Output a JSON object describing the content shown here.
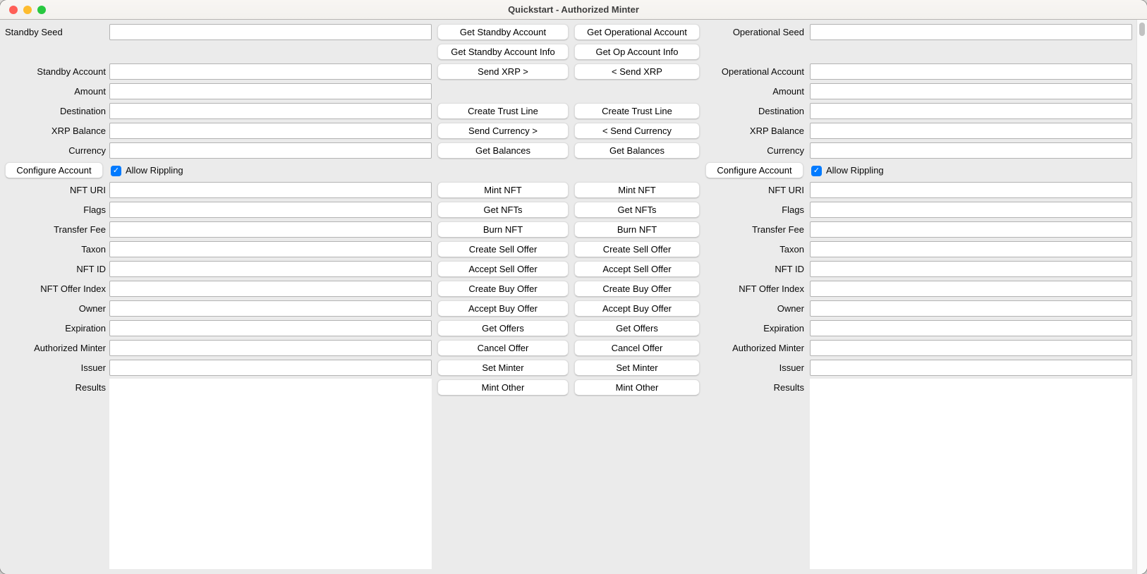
{
  "window": {
    "title": "Quickstart - Authorized Minter"
  },
  "icons": {
    "checkmark": "✓"
  },
  "colors": {
    "accent_blue": "#007aff",
    "traffic_close": "#ff5f57",
    "traffic_minimize": "#febc2e",
    "traffic_zoom": "#28c840",
    "page_background": "#ebebeb"
  },
  "rows": [
    {
      "left_label": "Standby Seed",
      "left_align": "left",
      "left_input": true,
      "btn1": "Get Standby Account",
      "btn2": "Get Operational Account",
      "right_label": "Operational Seed",
      "right_input": true
    },
    {
      "btn1": "Get Standby Account Info",
      "btn2": "Get Op Account Info"
    },
    {
      "left_label": "Standby Account",
      "left_input": true,
      "btn1": "Send XRP >",
      "btn2": "< Send XRP",
      "right_label": "Operational Account",
      "right_input": true
    },
    {
      "left_label": "Amount",
      "left_input": true,
      "right_label": "Amount",
      "right_input": true
    },
    {
      "left_label": "Destination",
      "left_input": true,
      "btn1": "Create Trust Line",
      "btn2": "Create Trust Line",
      "right_label": "Destination",
      "right_input": true
    },
    {
      "left_label": "XRP Balance",
      "left_input": true,
      "btn1": "Send Currency >",
      "btn2": "< Send Currency",
      "right_label": "XRP Balance",
      "right_input": true
    },
    {
      "left_label": "Currency",
      "left_input": true,
      "btn1": "Get Balances",
      "btn2": "Get Balances",
      "right_label": "Currency",
      "right_input": true
    },
    {
      "type": "configure",
      "button": "Configure Account",
      "checkbox_label": "Allow Rippling",
      "checked": true
    },
    {
      "left_label": "NFT URI",
      "left_input": true,
      "btn1": "Mint NFT",
      "btn2": "Mint NFT",
      "right_label": "NFT URI",
      "right_input": true
    },
    {
      "left_label": "Flags",
      "left_input": true,
      "btn1": "Get NFTs",
      "btn2": "Get NFTs",
      "right_label": "Flags",
      "right_input": true
    },
    {
      "left_label": "Transfer Fee",
      "left_input": true,
      "btn1": "Burn NFT",
      "btn2": "Burn NFT",
      "right_label": "Transfer Fee",
      "right_input": true
    },
    {
      "left_label": "Taxon",
      "left_input": true,
      "btn1": "Create Sell Offer",
      "btn2": "Create Sell Offer",
      "right_label": "Taxon",
      "right_input": true
    },
    {
      "left_label": "NFT ID",
      "left_input": true,
      "btn1": "Accept Sell Offer",
      "btn2": "Accept Sell Offer",
      "right_label": "NFT ID",
      "right_input": true
    },
    {
      "left_label": "NFT Offer Index",
      "left_input": true,
      "btn1": "Create Buy Offer",
      "btn2": "Create Buy Offer",
      "right_label": "NFT Offer Index",
      "right_input": true
    },
    {
      "left_label": "Owner",
      "left_input": true,
      "btn1": "Accept Buy Offer",
      "btn2": "Accept Buy Offer",
      "right_label": "Owner",
      "right_input": true
    },
    {
      "left_label": "Expiration",
      "left_input": true,
      "btn1": "Get Offers",
      "btn2": "Get Offers",
      "right_label": "Expiration",
      "right_input": true
    },
    {
      "left_label": "Authorized Minter",
      "left_input": true,
      "btn1": "Cancel Offer",
      "btn2": "Cancel Offer",
      "right_label": "Authorized Minter",
      "right_input": true
    },
    {
      "left_label": "Issuer",
      "left_input": true,
      "btn1": "Set Minter",
      "btn2": "Set Minter",
      "right_label": "Issuer",
      "right_input": true
    },
    {
      "left_label": "Results",
      "btn1": "Mint Other",
      "btn2": "Mint Other",
      "right_label": "Results"
    }
  ]
}
